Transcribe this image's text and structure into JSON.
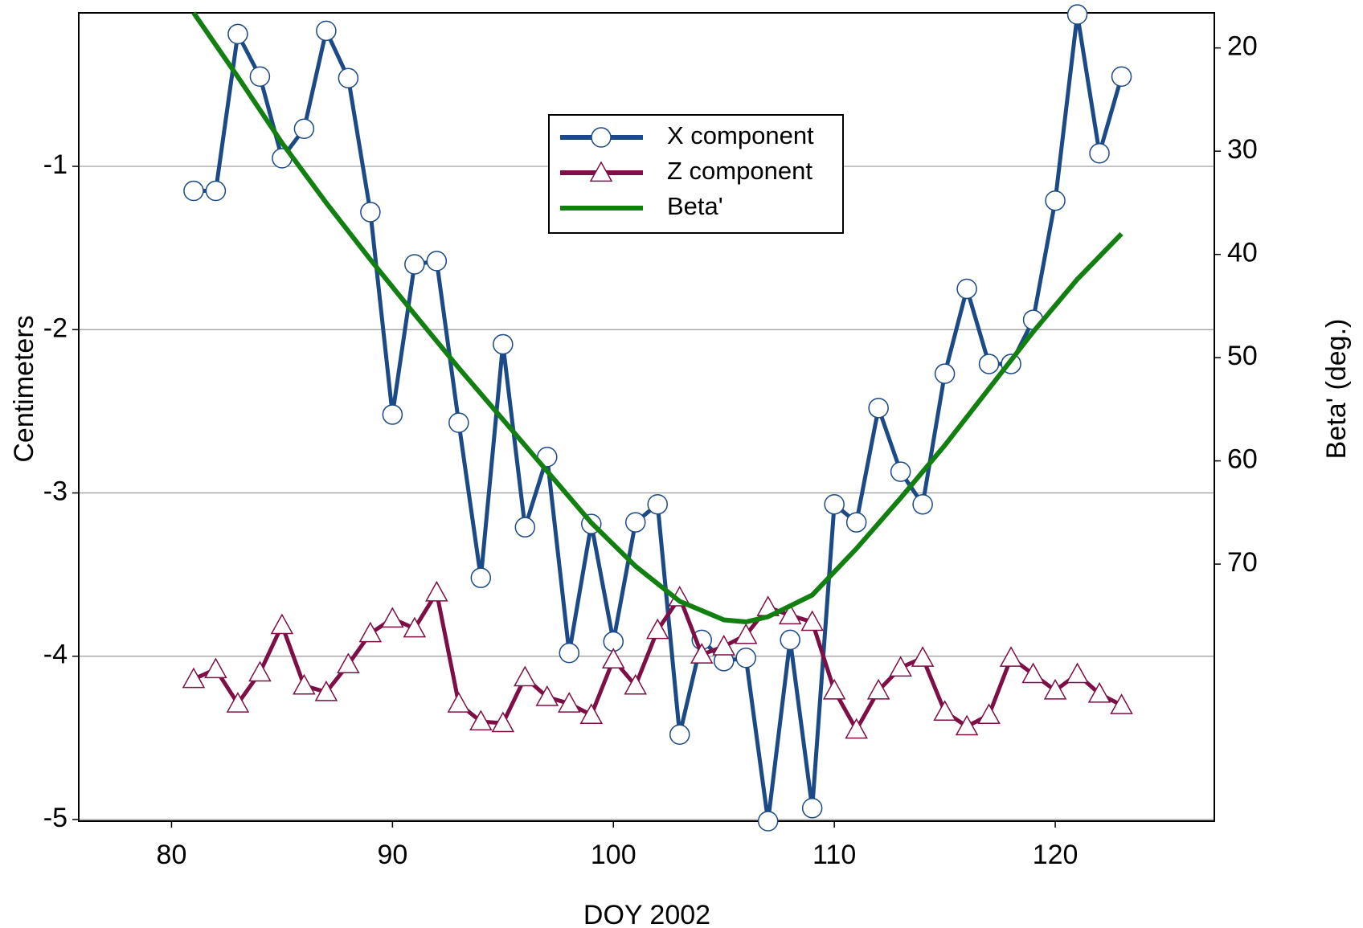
{
  "chart_data": {
    "type": "line",
    "x_label": "DOY 2002",
    "y_label": "Centimeters",
    "y2_label": "Beta' (deg.)",
    "x": [
      81,
      82,
      83,
      84,
      85,
      86,
      87,
      88,
      89,
      90,
      91,
      92,
      93,
      94,
      95,
      96,
      97,
      98,
      99,
      100,
      101,
      102,
      103,
      104,
      105,
      106,
      107,
      108,
      109,
      110,
      111,
      112,
      113,
      114,
      115,
      116,
      117,
      118,
      119,
      120,
      121,
      122,
      123
    ],
    "series": [
      {
        "name": "X component",
        "color": "#1c4a87",
        "marker": "circle",
        "values": [
          -1.15,
          -1.15,
          -0.19,
          -0.45,
          -0.95,
          -0.77,
          -0.17,
          -0.46,
          -1.28,
          -2.52,
          -1.6,
          -1.58,
          -2.57,
          -3.52,
          -2.09,
          -3.21,
          -2.78,
          -3.98,
          -3.19,
          -3.91,
          -3.18,
          -3.07,
          -4.48,
          -3.9,
          -4.03,
          -4.01,
          -5.01,
          -3.9,
          -4.93,
          -3.07,
          -3.18,
          -2.48,
          -2.87,
          -3.07,
          -2.27,
          -1.75,
          -2.21,
          -2.21,
          -1.94,
          -1.21,
          -0.07,
          -0.92,
          -0.45
        ]
      },
      {
        "name": "Z component",
        "color": "#7e0f46",
        "marker": "triangle",
        "values": [
          -4.14,
          -4.08,
          -4.29,
          -4.1,
          -3.81,
          -4.18,
          -4.22,
          -4.05,
          -3.86,
          -3.77,
          -3.83,
          -3.61,
          -4.29,
          -4.4,
          -4.41,
          -4.13,
          -4.25,
          -4.29,
          -4.36,
          -4.02,
          -4.18,
          -3.84,
          -3.64,
          -3.99,
          -3.94,
          -3.87,
          -3.7,
          -3.75,
          -3.79,
          -4.21,
          -4.45,
          -4.21,
          -4.07,
          -4.01,
          -4.34,
          -4.43,
          -4.36,
          -4.01,
          -4.11,
          -4.21,
          -4.11,
          -4.23,
          -4.3
        ]
      },
      {
        "name": "Beta'",
        "color": "#118011",
        "axis": "y2",
        "x": [
          81,
          83,
          85,
          87,
          89,
          91,
          93,
          95,
          97,
          99,
          101,
          103,
          105,
          106,
          107,
          109,
          111,
          113,
          115,
          117,
          119,
          121,
          123
        ],
        "values": [
          16.6,
          22.8,
          29.2,
          35.0,
          40.5,
          45.8,
          51.0,
          56.0,
          61.0,
          66.0,
          70.2,
          73.6,
          75.4,
          75.6,
          75.1,
          73.0,
          68.5,
          63.6,
          58.5,
          53.0,
          47.5,
          42.4,
          38.0
        ]
      }
    ],
    "xlim": [
      75.8,
      127.2
    ],
    "xticks": [
      80,
      90,
      100,
      110,
      120
    ],
    "ylim": [
      -5.01,
      -0.06
    ],
    "yticks": [
      -1,
      -2,
      -3,
      -4,
      -5
    ],
    "y2lim": [
      94.9,
      16.6
    ],
    "y2ticks": [
      20,
      30,
      40,
      50,
      60,
      70
    ],
    "grid": true
  }
}
